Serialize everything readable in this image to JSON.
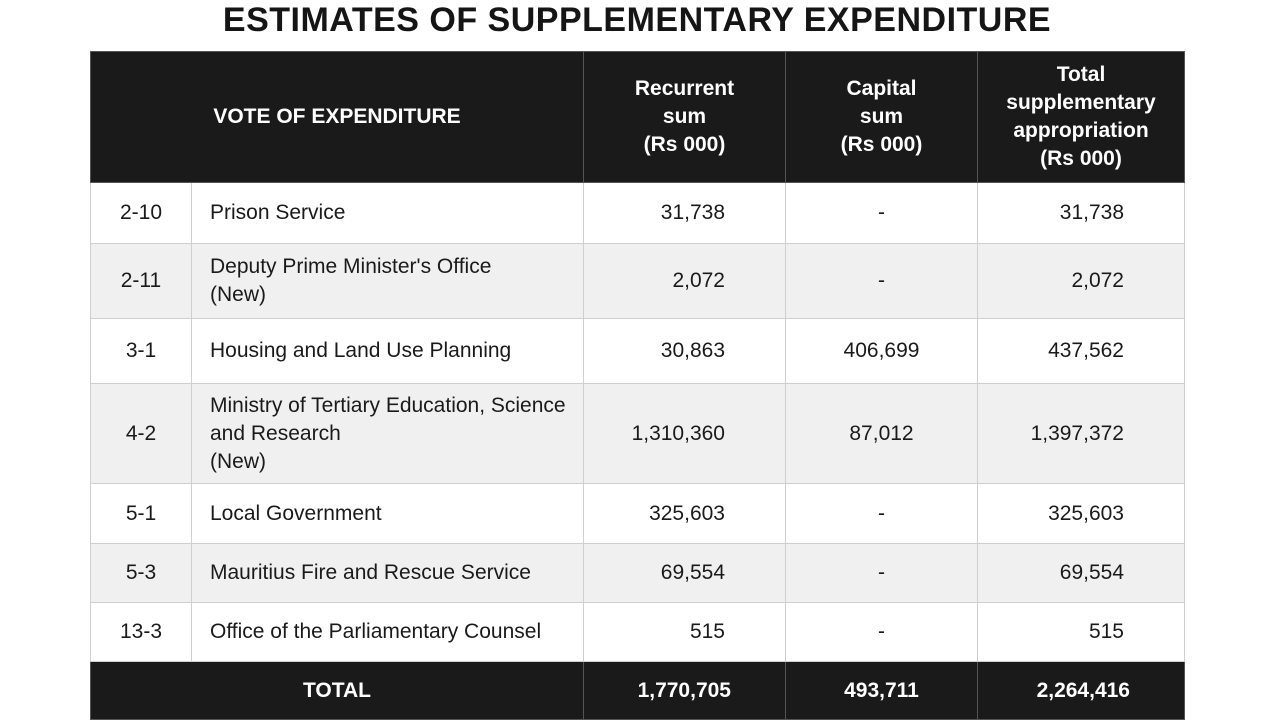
{
  "title": "ESTIMATES OF SUPPLEMENTARY EXPENDITURE",
  "headers": {
    "vote": "VOTE OF EXPENDITURE",
    "recurrent": [
      "Recurrent",
      "sum",
      "(Rs 000)"
    ],
    "capital": [
      "Capital",
      "sum",
      "(Rs 000)"
    ],
    "total": [
      "Total",
      "supplementary",
      "appropriation",
      "(Rs 000)"
    ]
  },
  "rows": [
    {
      "code": "2-10",
      "name": [
        "Prison Service"
      ],
      "recurrent": "31,738",
      "capital": "-",
      "total": "31,738"
    },
    {
      "code": "2-11",
      "name": [
        "Deputy Prime Minister's Office",
        "(New)"
      ],
      "recurrent": "2,072",
      "capital": "-",
      "total": "2,072"
    },
    {
      "code": "3-1",
      "name": [
        "Housing and Land Use Planning"
      ],
      "recurrent": "30,863",
      "capital": "406,699",
      "total": "437,562"
    },
    {
      "code": "4-2",
      "name": [
        "Ministry of Tertiary Education, Science",
        "and Research",
        "(New)"
      ],
      "recurrent": "1,310,360",
      "capital": "87,012",
      "total": "1,397,372"
    },
    {
      "code": "5-1",
      "name": [
        "Local Government"
      ],
      "recurrent": "325,603",
      "capital": "-",
      "total": "325,603"
    },
    {
      "code": "5-3",
      "name": [
        "Mauritius Fire and Rescue Service"
      ],
      "recurrent": "69,554",
      "capital": "-",
      "total": "69,554"
    },
    {
      "code": "13-3",
      "name": [
        "Office of the Parliamentary Counsel"
      ],
      "recurrent": "515",
      "capital": "-",
      "total": "515"
    }
  ],
  "totals": {
    "label": "TOTAL",
    "recurrent": "1,770,705",
    "capital": "493,711",
    "total": "2,264,416"
  }
}
